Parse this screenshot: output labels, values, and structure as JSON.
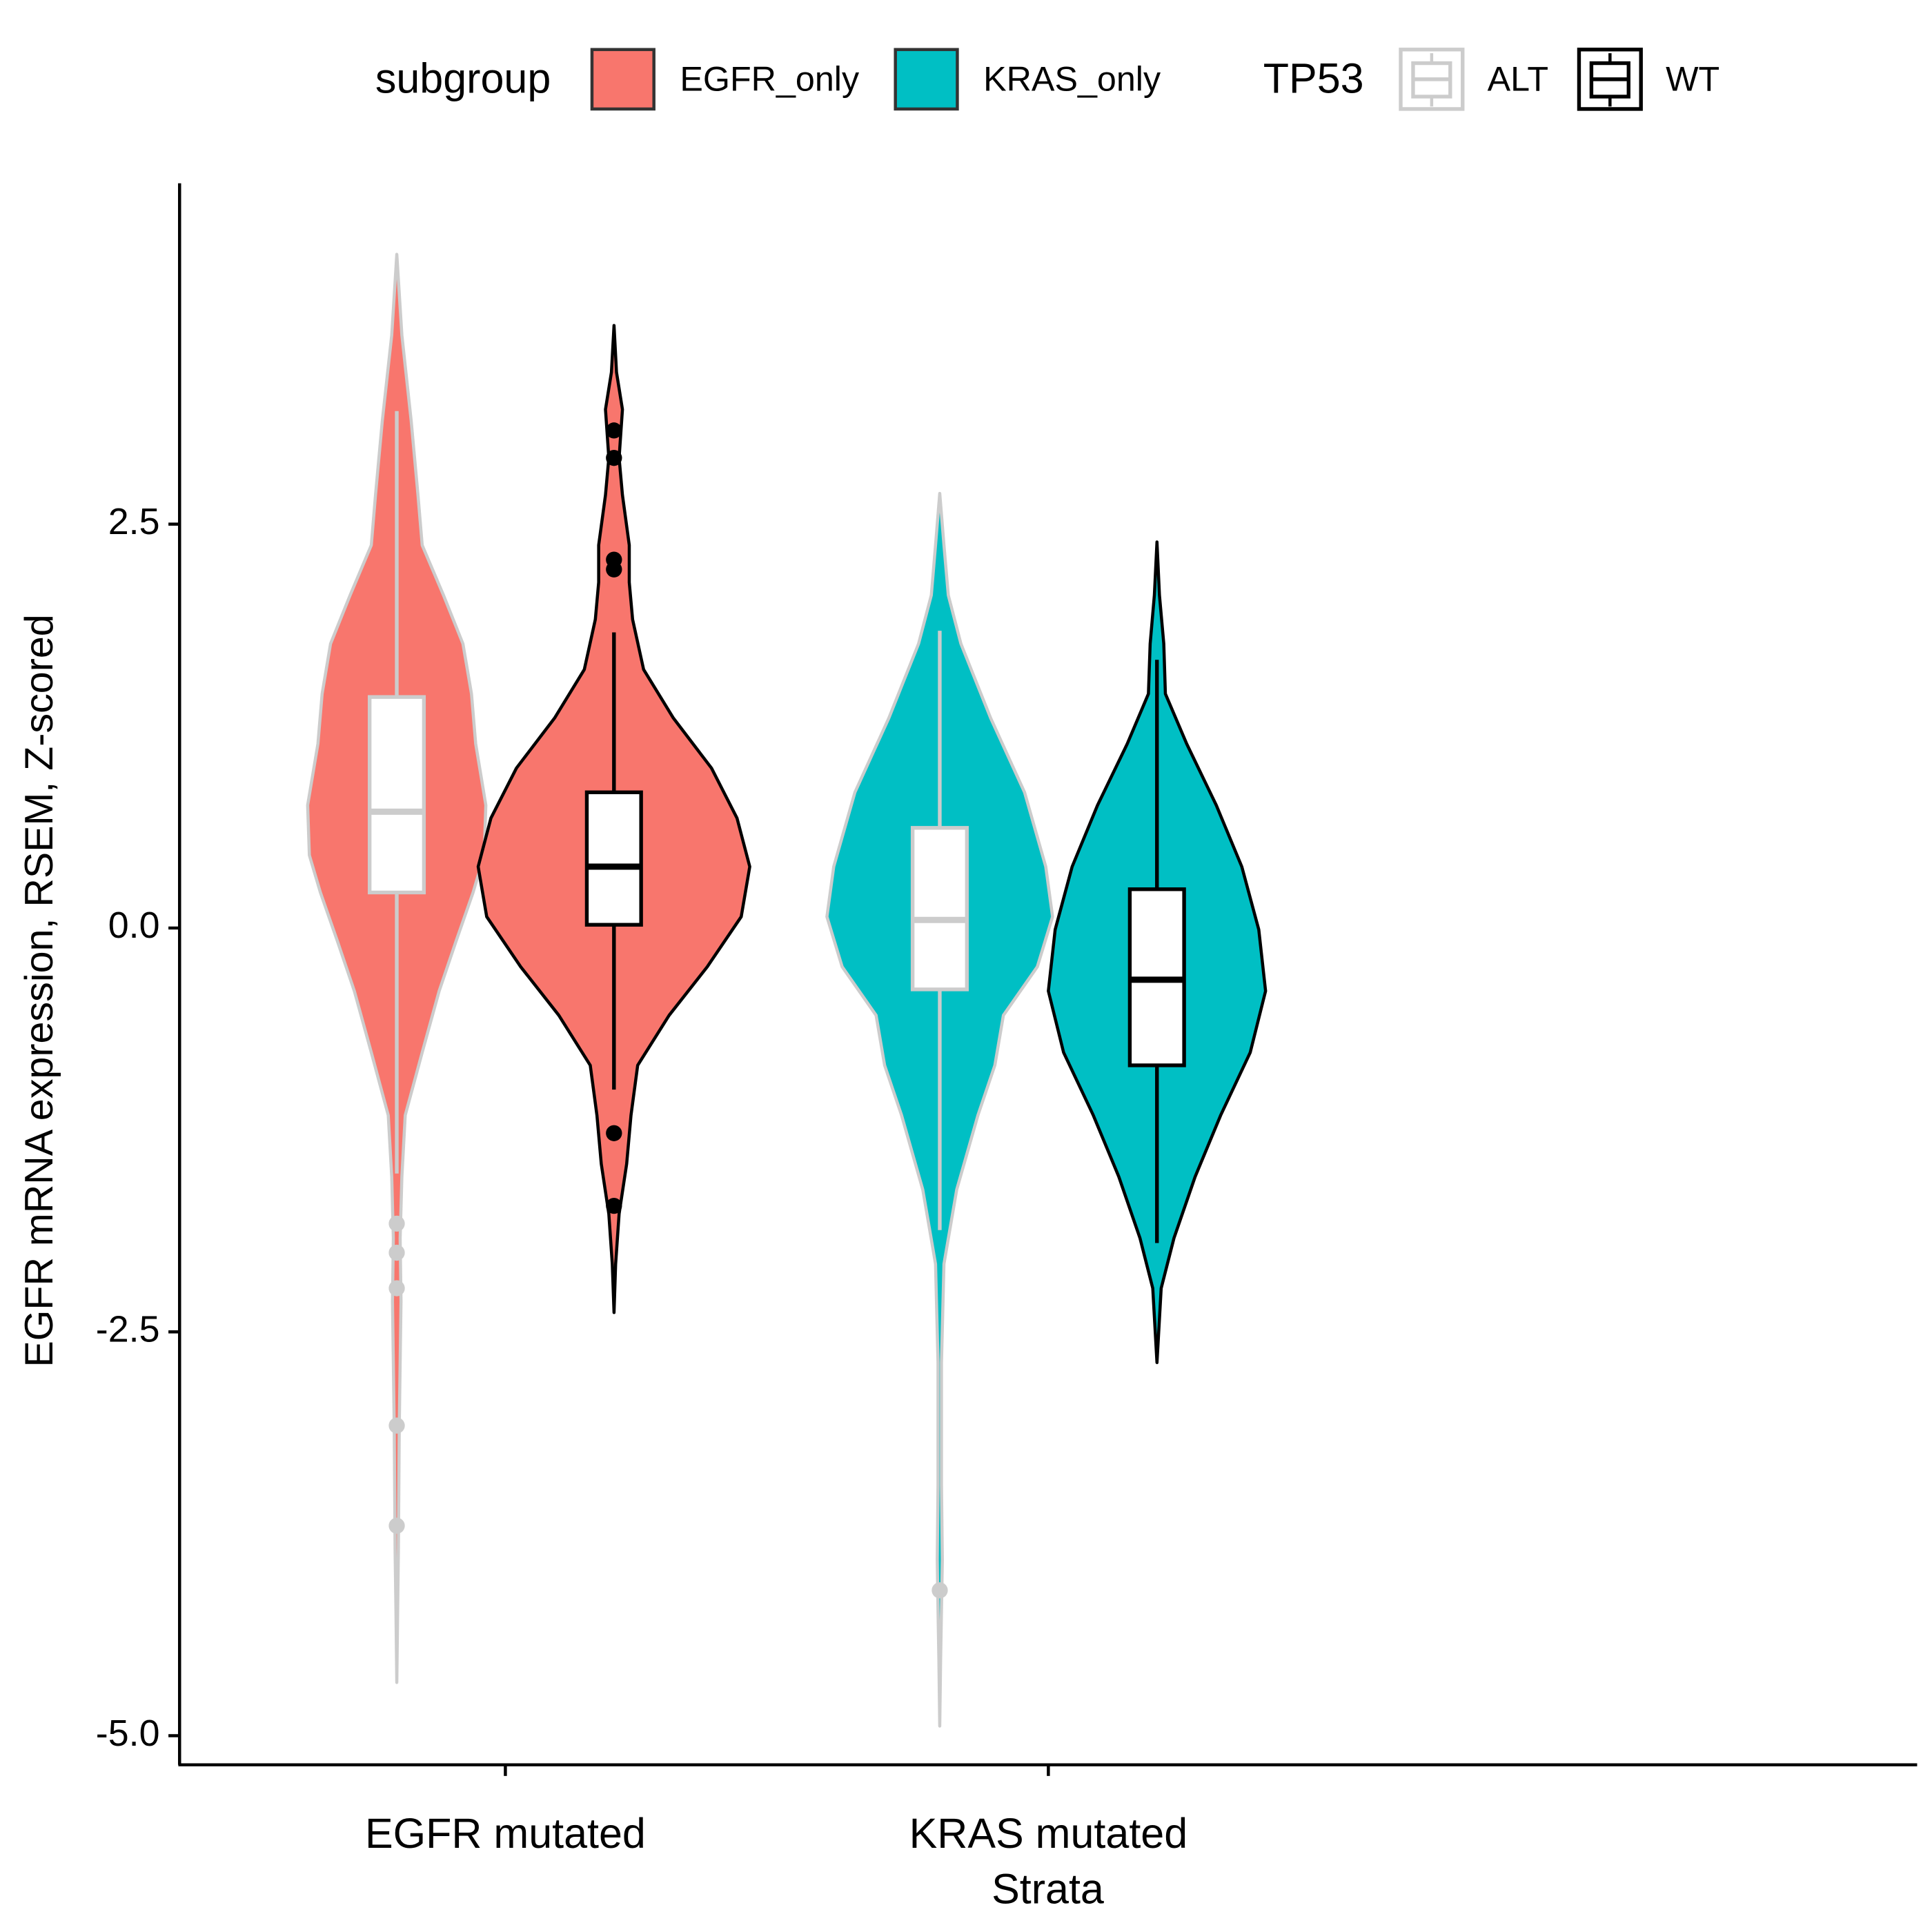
{
  "chart_data": {
    "type": "violin",
    "x_label": "Strata",
    "y_label": "EGFR mRNA expression, RSEM, Z-scored",
    "categories": [
      "EGFR mutated",
      "KRAS mutated"
    ],
    "fill_legend_title": "subgroup",
    "fill_names": [
      "EGFR_only",
      "KRAS_only"
    ],
    "fill_colors": [
      "#F8766D",
      "#00BFC4"
    ],
    "series_legend_title": "TP53",
    "ylim": [
      -5.18,
      4.61
    ],
    "yticks": [
      2.5,
      {
        "value": 0,
        "label": "0.0"
      },
      -2.5,
      {
        "value": -5,
        "label": "-5.0"
      }
    ],
    "series": [
      {
        "name": "ALT",
        "color": "#cccccc",
        "boxes": [
          {
            "q1": 0.22,
            "median": 0.72,
            "q3": 1.43,
            "whisker_low": -1.52,
            "whisker_high": 3.2,
            "outliers": [
              -1.83,
              -2.01,
              -2.23,
              -3.08,
              -3.7
            ],
            "violin_y": [
              4.17,
              3.67,
              3.14,
              2.68,
              2.37,
              2.06,
              1.76,
              1.45,
              1.14,
              0.76,
              0.45,
              0.22,
              -0.08,
              -0.39,
              -0.77,
              -1.16,
              -1.54,
              -1.92,
              -2.31,
              -2.69,
              -3.08,
              -3.84,
              -4.22,
              -4.67
            ],
            "density": [
              0,
              0.06,
              0.17,
              0.25,
              0.3,
              0.55,
              0.78,
              0.88,
              0.93,
              1.05,
              1.03,
              0.9,
              0.7,
              0.5,
              0.3,
              0.1,
              0.06,
              0.04,
              0.05,
              0.04,
              0.03,
              0.02,
              0.01,
              0
            ]
          },
          {
            "q1": -0.38,
            "median": 0.05,
            "q3": 0.62,
            "whisker_low": -1.87,
            "whisker_high": 1.84,
            "outliers": [
              -4.1
            ],
            "violin_y": [
              2.69,
              2.37,
              2.06,
              1.76,
              1.3,
              0.84,
              0.38,
              0.07,
              -0.24,
              -0.54,
              -0.85,
              -1.16,
              -1.62,
              -2.08,
              -2.69,
              -3.45,
              -3.91,
              -4.22,
              -4.53,
              -4.94
            ],
            "density": [
              0,
              0.05,
              0.1,
              0.25,
              0.6,
              1.0,
              1.25,
              1.33,
              1.15,
              0.75,
              0.65,
              0.45,
              0.2,
              0.05,
              0.02,
              0.02,
              0.03,
              0.02,
              0.01,
              0
            ]
          }
        ]
      },
      {
        "name": "WT",
        "color": "#000000",
        "boxes": [
          {
            "q1": 0.02,
            "median": 0.38,
            "q3": 0.84,
            "whisker_low": -1.0,
            "whisker_high": 1.83,
            "outliers": [
              3.08,
              2.91,
              2.28,
              2.22,
              -1.27,
              -1.72
            ],
            "violin_y": [
              3.73,
              3.44,
              3.21,
              2.91,
              2.68,
              2.37,
              2.14,
              1.91,
              1.6,
              1.3,
              0.99,
              0.68,
              0.38,
              0.07,
              -0.24,
              -0.54,
              -0.85,
              -1.16,
              -1.46,
              -1.77,
              -2.08,
              -2.38
            ],
            "density": [
              0,
              0.03,
              0.1,
              0.06,
              0.1,
              0.18,
              0.18,
              0.22,
              0.35,
              0.7,
              1.15,
              1.45,
              1.6,
              1.5,
              1.1,
              0.65,
              0.28,
              0.2,
              0.15,
              0.06,
              0.02,
              0
            ]
          },
          {
            "q1": -0.85,
            "median": -0.32,
            "q3": 0.24,
            "whisker_low": -1.95,
            "whisker_high": 1.66,
            "outliers": [],
            "violin_y": [
              2.39,
              2.06,
              1.76,
              1.45,
              1.14,
              0.76,
              0.38,
              -0.01,
              -0.39,
              -0.77,
              -1.16,
              -1.54,
              -1.92,
              -2.23,
              -2.69
            ],
            "density": [
              0,
              0.03,
              0.08,
              0.1,
              0.35,
              0.7,
              1.0,
              1.2,
              1.28,
              1.1,
              0.75,
              0.45,
              0.2,
              0.05,
              0
            ]
          }
        ]
      }
    ]
  }
}
